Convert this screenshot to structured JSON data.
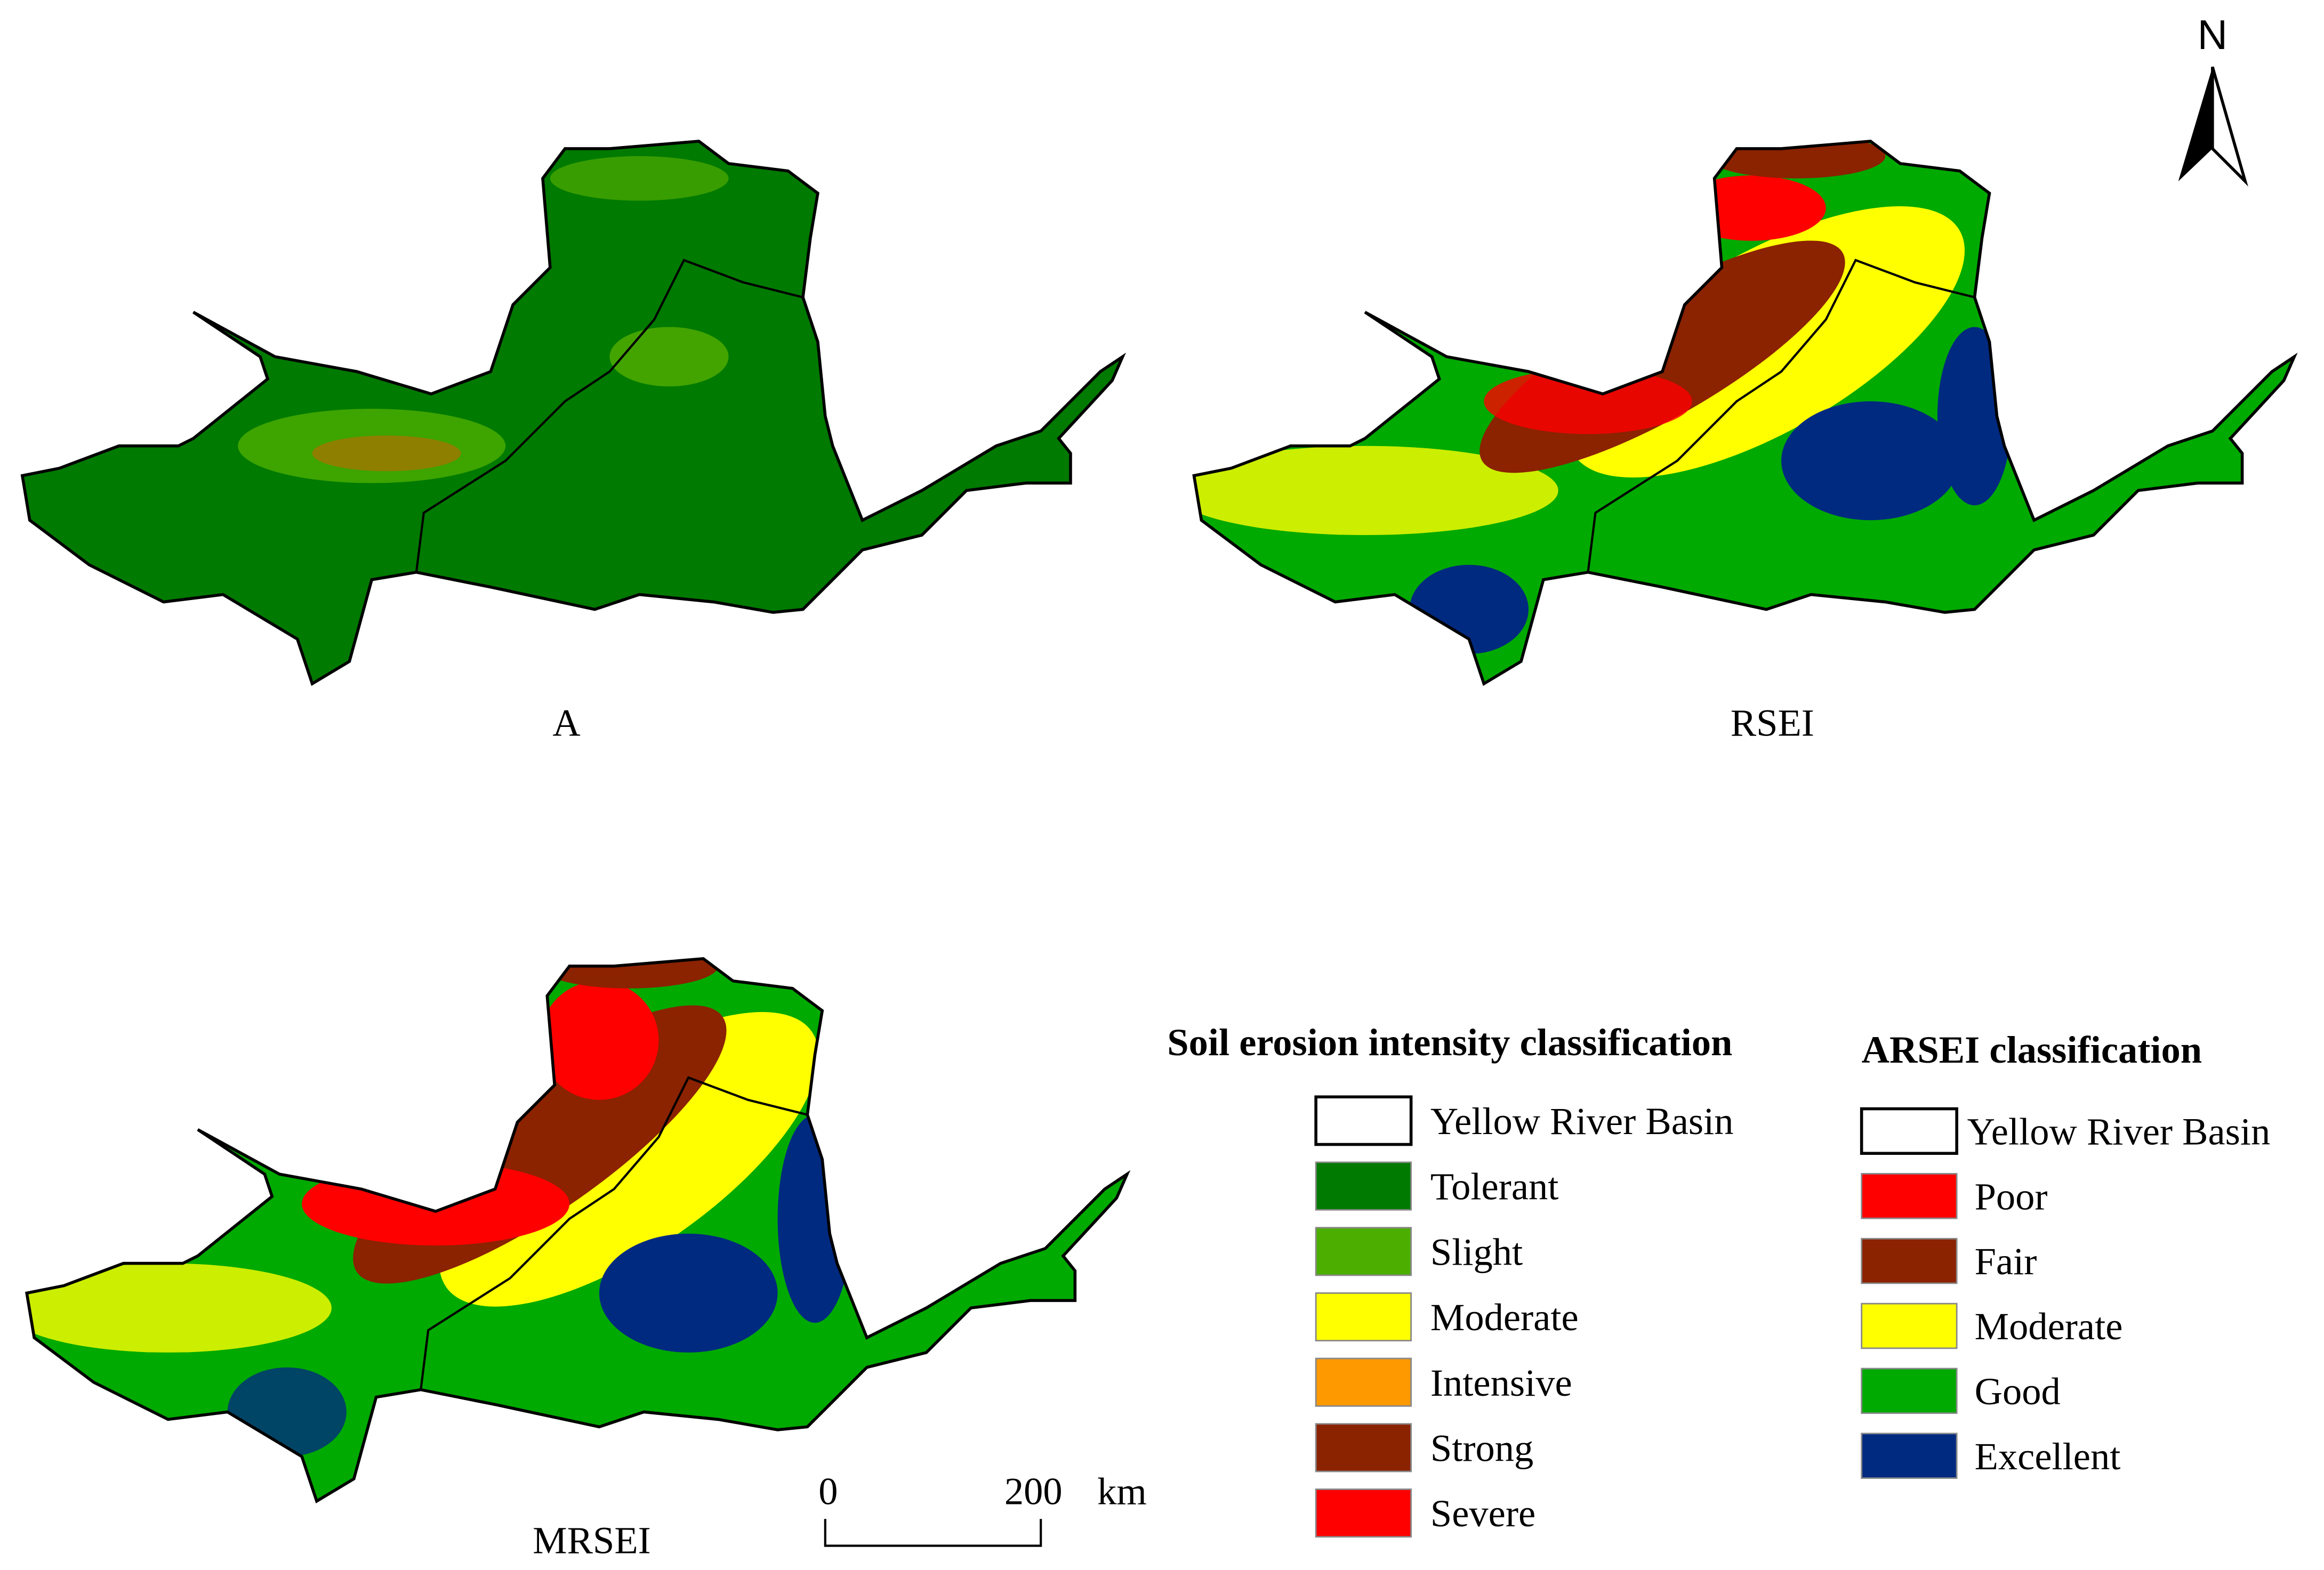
{
  "panels": [
    {
      "label": "A"
    },
    {
      "label": "RSEI"
    },
    {
      "label": "MRSEI"
    }
  ],
  "north_arrow": {
    "label": "N"
  },
  "scale_bar": {
    "start": "0",
    "end": "200",
    "unit": "km"
  },
  "legends": [
    {
      "title": "Soil erosion intensity classification",
      "items": [
        {
          "label": "Yellow River Basin",
          "color": "#ffffff"
        },
        {
          "label": "Tolerant",
          "color": "#007a00"
        },
        {
          "label": "Slight",
          "color": "#4caf00"
        },
        {
          "label": "Moderate",
          "color": "#ffff00"
        },
        {
          "label": "Intensive",
          "color": "#ff9900"
        },
        {
          "label": "Strong",
          "color": "#8b2200"
        },
        {
          "label": "Severe",
          "color": "#ff0000"
        }
      ]
    },
    {
      "title": "ARSEI classification",
      "items": [
        {
          "label": "Yellow River Basin",
          "color": "#ffffff"
        },
        {
          "label": "Poor",
          "color": "#ff0000"
        },
        {
          "label": "Fair",
          "color": "#8b2200"
        },
        {
          "label": "Moderate",
          "color": "#ffff00"
        },
        {
          "label": "Good",
          "color": "#00aa00"
        },
        {
          "label": "Excellent",
          "color": "#002a80"
        }
      ]
    }
  ]
}
